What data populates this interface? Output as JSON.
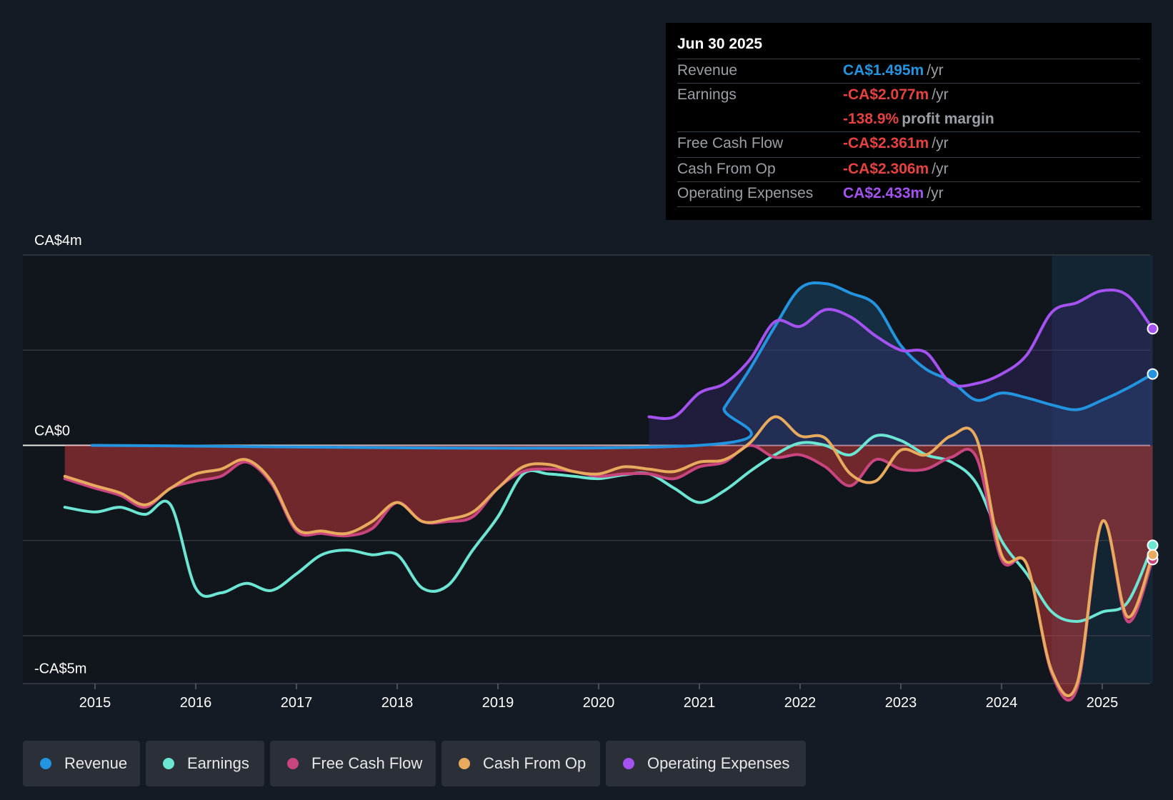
{
  "tooltip": {
    "date": "Jun 30 2025",
    "rows": [
      {
        "label": "Revenue",
        "value": "CA$1.495m",
        "unit": "/yr",
        "color": "#2394df"
      },
      {
        "label": "Earnings",
        "value": "-CA$2.077m",
        "unit": "/yr",
        "color": "#e64141"
      },
      {
        "label": "Free Cash Flow",
        "value": "-CA$2.361m",
        "unit": "/yr",
        "color": "#e64141"
      },
      {
        "label": "Cash From Op",
        "value": "-CA$2.306m",
        "unit": "/yr",
        "color": "#e64141"
      },
      {
        "label": "Operating Expenses",
        "value": "CA$2.433m",
        "unit": "/yr",
        "color": "#a452f0"
      }
    ],
    "margin_value": "-138.9%",
    "margin_label": "profit margin",
    "margin_color": "#e64141"
  },
  "legend": [
    {
      "label": "Revenue",
      "color": "#2394df"
    },
    {
      "label": "Earnings",
      "color": "#6ce5d2"
    },
    {
      "label": "Free Cash Flow",
      "color": "#c8457f"
    },
    {
      "label": "Cash From Op",
      "color": "#e8ab5e"
    },
    {
      "label": "Operating Expenses",
      "color": "#a452f0"
    }
  ],
  "chart_data": {
    "type": "line",
    "title": "",
    "xlabel": "",
    "ylabel": "",
    "y_unit": "CA$m",
    "ylim": [
      -5,
      4
    ],
    "xlim": [
      2014.3,
      2025.5
    ],
    "y_tick_labels": [
      "CA$4m",
      "CA$0",
      "-CA$5m"
    ],
    "y_tick_values": [
      4,
      0,
      -5
    ],
    "x_ticks": [
      {
        "label": "2015",
        "value": 2015
      },
      {
        "label": "2016",
        "value": 2016
      },
      {
        "label": "2017",
        "value": 2017
      },
      {
        "label": "2018",
        "value": 2018
      },
      {
        "label": "2019",
        "value": 2019
      },
      {
        "label": "2020",
        "value": 2020
      },
      {
        "label": "2021",
        "value": 2021
      },
      {
        "label": "2022",
        "value": 2022
      },
      {
        "label": "2023",
        "value": 2023
      },
      {
        "label": "2024",
        "value": 2024
      },
      {
        "label": "2025",
        "value": 2025
      }
    ],
    "highlight_range": [
      2024.5,
      2025.5
    ],
    "series": [
      {
        "name": "Revenue",
        "color": "#2394df",
        "fill": "#1c4e72",
        "fill_opacity": 0.45,
        "points": [
          [
            2014.97,
            0.0
          ],
          [
            2021.0,
            0.0
          ],
          [
            2021.25,
            0.8
          ],
          [
            2021.5,
            1.6
          ],
          [
            2021.75,
            2.5
          ],
          [
            2022.0,
            3.3
          ],
          [
            2022.25,
            3.4
          ],
          [
            2022.5,
            3.2
          ],
          [
            2022.75,
            2.95
          ],
          [
            2023.0,
            2.1
          ],
          [
            2023.25,
            1.6
          ],
          [
            2023.5,
            1.35
          ],
          [
            2023.75,
            0.95
          ],
          [
            2024.0,
            1.1
          ],
          [
            2024.25,
            1.0
          ],
          [
            2024.5,
            0.85
          ],
          [
            2024.75,
            0.75
          ],
          [
            2025.0,
            0.95
          ],
          [
            2025.25,
            1.2
          ],
          [
            2025.5,
            1.5
          ]
        ]
      },
      {
        "name": "Operating Expenses",
        "color": "#a452f0",
        "fill": "#3d2f78",
        "fill_opacity": 0.35,
        "points": [
          [
            2020.5,
            0.6
          ],
          [
            2020.75,
            0.6
          ],
          [
            2021.0,
            1.1
          ],
          [
            2021.25,
            1.3
          ],
          [
            2021.5,
            1.8
          ],
          [
            2021.75,
            2.6
          ],
          [
            2022.0,
            2.5
          ],
          [
            2022.25,
            2.85
          ],
          [
            2022.5,
            2.7
          ],
          [
            2022.75,
            2.3
          ],
          [
            2023.0,
            2.0
          ],
          [
            2023.25,
            1.95
          ],
          [
            2023.5,
            1.3
          ],
          [
            2023.75,
            1.3
          ],
          [
            2024.0,
            1.5
          ],
          [
            2024.25,
            1.9
          ],
          [
            2024.5,
            2.8
          ],
          [
            2024.75,
            3.0
          ],
          [
            2025.0,
            3.25
          ],
          [
            2025.25,
            3.15
          ],
          [
            2025.5,
            2.45
          ]
        ]
      },
      {
        "name": "Earnings",
        "color": "#6ce5d2",
        "points": [
          [
            2014.7,
            -1.3
          ],
          [
            2015.0,
            -1.4
          ],
          [
            2015.25,
            -1.3
          ],
          [
            2015.5,
            -1.45
          ],
          [
            2015.75,
            -1.25
          ],
          [
            2016.0,
            -3.0
          ],
          [
            2016.25,
            -3.1
          ],
          [
            2016.5,
            -2.9
          ],
          [
            2016.75,
            -3.05
          ],
          [
            2017.0,
            -2.7
          ],
          [
            2017.25,
            -2.3
          ],
          [
            2017.5,
            -2.2
          ],
          [
            2017.75,
            -2.3
          ],
          [
            2018.0,
            -2.3
          ],
          [
            2018.25,
            -3.0
          ],
          [
            2018.5,
            -2.95
          ],
          [
            2018.75,
            -2.2
          ],
          [
            2019.0,
            -1.5
          ],
          [
            2019.25,
            -0.6
          ],
          [
            2019.5,
            -0.6
          ],
          [
            2019.75,
            -0.65
          ],
          [
            2020.0,
            -0.7
          ],
          [
            2020.25,
            -0.62
          ],
          [
            2020.5,
            -0.6
          ],
          [
            2020.75,
            -0.9
          ],
          [
            2021.0,
            -1.2
          ],
          [
            2021.25,
            -0.95
          ],
          [
            2021.5,
            -0.55
          ],
          [
            2021.75,
            -0.2
          ],
          [
            2022.0,
            0.05
          ],
          [
            2022.25,
            0.0
          ],
          [
            2022.5,
            -0.2
          ],
          [
            2022.75,
            0.2
          ],
          [
            2023.0,
            0.1
          ],
          [
            2023.25,
            -0.2
          ],
          [
            2023.5,
            -0.35
          ],
          [
            2023.75,
            -0.8
          ],
          [
            2024.0,
            -2.0
          ],
          [
            2024.25,
            -2.7
          ],
          [
            2024.5,
            -3.5
          ],
          [
            2024.75,
            -3.7
          ],
          [
            2025.0,
            -3.5
          ],
          [
            2025.25,
            -3.3
          ],
          [
            2025.5,
            -2.1
          ]
        ]
      },
      {
        "name": "Free Cash Flow",
        "color": "#c8457f",
        "fill": "#e64141",
        "fill_opacity": 0.45,
        "points": [
          [
            2014.7,
            -0.7
          ],
          [
            2015.0,
            -0.9
          ],
          [
            2015.25,
            -1.05
          ],
          [
            2015.5,
            -1.3
          ],
          [
            2015.75,
            -0.9
          ],
          [
            2016.0,
            -0.75
          ],
          [
            2016.25,
            -0.65
          ],
          [
            2016.5,
            -0.35
          ],
          [
            2016.75,
            -0.8
          ],
          [
            2017.0,
            -1.8
          ],
          [
            2017.25,
            -1.85
          ],
          [
            2017.5,
            -1.9
          ],
          [
            2017.75,
            -1.75
          ],
          [
            2018.0,
            -1.2
          ],
          [
            2018.25,
            -1.6
          ],
          [
            2018.5,
            -1.6
          ],
          [
            2018.75,
            -1.5
          ],
          [
            2019.0,
            -0.9
          ],
          [
            2019.25,
            -0.55
          ],
          [
            2019.5,
            -0.5
          ],
          [
            2019.75,
            -0.55
          ],
          [
            2020.0,
            -0.65
          ],
          [
            2020.25,
            -0.6
          ],
          [
            2020.5,
            -0.6
          ],
          [
            2020.75,
            -0.7
          ],
          [
            2021.0,
            -0.45
          ],
          [
            2021.25,
            -0.35
          ],
          [
            2021.5,
            0.0
          ],
          [
            2021.75,
            -0.25
          ],
          [
            2022.0,
            -0.2
          ],
          [
            2022.25,
            -0.45
          ],
          [
            2022.5,
            -0.85
          ],
          [
            2022.75,
            -0.3
          ],
          [
            2023.0,
            -0.5
          ],
          [
            2023.25,
            -0.5
          ],
          [
            2023.5,
            -0.25
          ],
          [
            2023.75,
            -0.25
          ],
          [
            2024.0,
            -2.4
          ],
          [
            2024.25,
            -2.5
          ],
          [
            2024.5,
            -4.8
          ],
          [
            2024.75,
            -5.1
          ],
          [
            2025.0,
            -1.6
          ],
          [
            2025.25,
            -3.7
          ],
          [
            2025.5,
            -2.4
          ]
        ]
      },
      {
        "name": "Cash From Op",
        "color": "#e8ab5e",
        "points": [
          [
            2014.7,
            -0.65
          ],
          [
            2015.0,
            -0.85
          ],
          [
            2015.25,
            -1.0
          ],
          [
            2015.5,
            -1.25
          ],
          [
            2015.75,
            -0.9
          ],
          [
            2016.0,
            -0.6
          ],
          [
            2016.25,
            -0.5
          ],
          [
            2016.5,
            -0.3
          ],
          [
            2016.75,
            -0.75
          ],
          [
            2017.0,
            -1.75
          ],
          [
            2017.25,
            -1.8
          ],
          [
            2017.5,
            -1.85
          ],
          [
            2017.75,
            -1.6
          ],
          [
            2018.0,
            -1.2
          ],
          [
            2018.25,
            -1.6
          ],
          [
            2018.5,
            -1.55
          ],
          [
            2018.75,
            -1.4
          ],
          [
            2019.0,
            -0.9
          ],
          [
            2019.25,
            -0.45
          ],
          [
            2019.5,
            -0.4
          ],
          [
            2019.75,
            -0.55
          ],
          [
            2020.0,
            -0.6
          ],
          [
            2020.25,
            -0.45
          ],
          [
            2020.5,
            -0.5
          ],
          [
            2020.75,
            -0.55
          ],
          [
            2021.0,
            -0.35
          ],
          [
            2021.25,
            -0.3
          ],
          [
            2021.5,
            0.05
          ],
          [
            2021.75,
            0.6
          ],
          [
            2022.0,
            0.2
          ],
          [
            2022.25,
            0.15
          ],
          [
            2022.5,
            -0.6
          ],
          [
            2022.75,
            -0.75
          ],
          [
            2023.0,
            -0.1
          ],
          [
            2023.25,
            -0.2
          ],
          [
            2023.5,
            0.2
          ],
          [
            2023.75,
            0.15
          ],
          [
            2024.0,
            -2.3
          ],
          [
            2024.25,
            -2.5
          ],
          [
            2024.5,
            -4.75
          ],
          [
            2024.75,
            -5.0
          ],
          [
            2025.0,
            -1.6
          ],
          [
            2025.25,
            -3.6
          ],
          [
            2025.5,
            -2.3
          ]
        ]
      }
    ]
  }
}
